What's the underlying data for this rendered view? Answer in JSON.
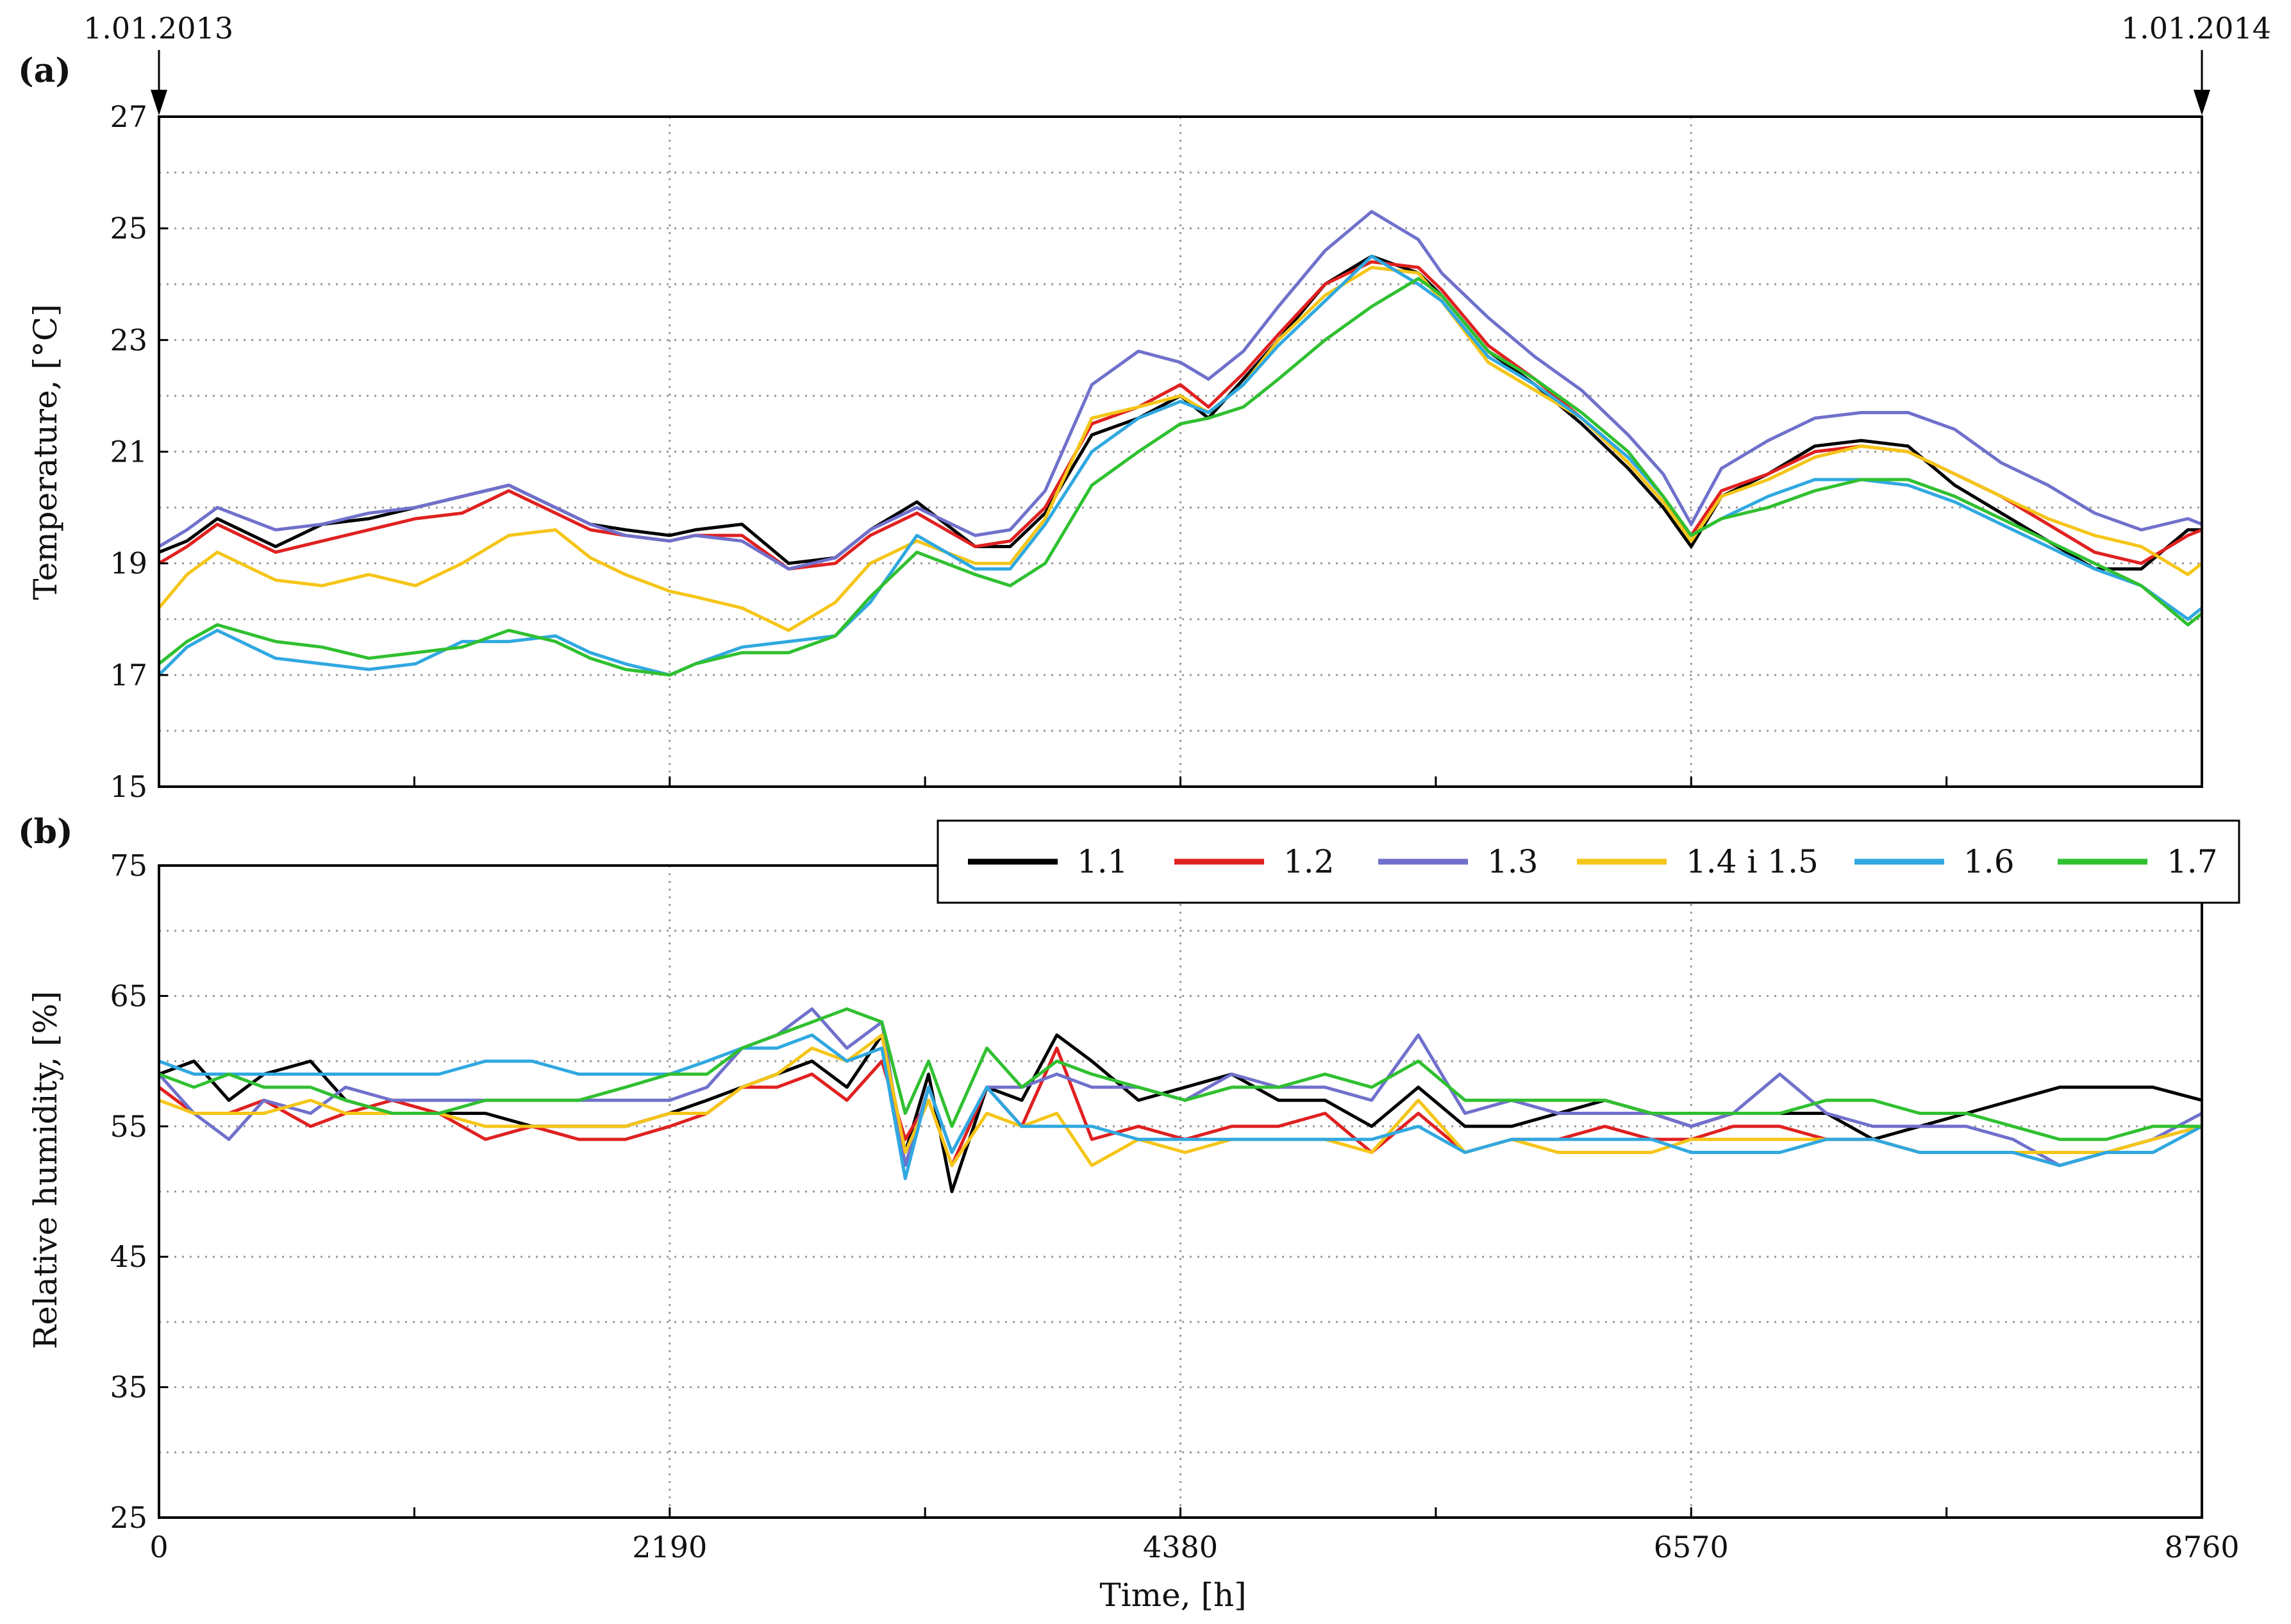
{
  "chart_data": [
    {
      "panel_label": "(a)",
      "type": "line",
      "ylabel": "Temperature, [°C]",
      "xlabel": "",
      "xlim": [
        0,
        8760
      ],
      "ylim": [
        15,
        27
      ],
      "yticks": [
        15,
        17,
        19,
        21,
        23,
        25,
        27
      ],
      "xticks": [
        0,
        2190,
        4380,
        6570,
        8760
      ],
      "xticks_labeled": false,
      "grid": "dotted",
      "date_annotations": [
        {
          "label": "1.01.2013",
          "x": 0
        },
        {
          "label": "1.01.2014",
          "x": 8760
        }
      ],
      "x": [
        0,
        120,
        250,
        500,
        700,
        900,
        1100,
        1300,
        1500,
        1700,
        1850,
        2000,
        2190,
        2300,
        2500,
        2700,
        2900,
        3050,
        3250,
        3500,
        3650,
        3800,
        4000,
        4200,
        4380,
        4500,
        4650,
        4800,
        5000,
        5200,
        5400,
        5500,
        5700,
        5900,
        6100,
        6300,
        6450,
        6570,
        6700,
        6900,
        7100,
        7300,
        7500,
        7700,
        7900,
        8100,
        8300,
        8500,
        8700,
        8760
      ],
      "series": [
        {
          "name": "1.1",
          "color": "#000000",
          "values": [
            19.2,
            19.4,
            19.8,
            19.3,
            19.7,
            19.8,
            20.0,
            20.2,
            20.4,
            20.0,
            19.7,
            19.6,
            19.5,
            19.6,
            19.7,
            19.0,
            19.1,
            19.6,
            20.1,
            19.3,
            19.3,
            19.9,
            21.3,
            21.6,
            22.0,
            21.6,
            22.3,
            23.0,
            24.0,
            24.5,
            24.2,
            23.8,
            22.8,
            22.2,
            21.5,
            20.7,
            20.0,
            19.3,
            20.2,
            20.6,
            21.1,
            21.2,
            21.1,
            20.4,
            19.9,
            19.4,
            18.9,
            18.9,
            19.6,
            19.6
          ]
        },
        {
          "name": "1.2",
          "color": "#e02020",
          "values": [
            19.0,
            19.3,
            19.7,
            19.2,
            19.4,
            19.6,
            19.8,
            19.9,
            20.3,
            19.9,
            19.6,
            19.5,
            19.4,
            19.5,
            19.5,
            18.9,
            19.0,
            19.5,
            19.9,
            19.3,
            19.4,
            20.0,
            21.5,
            21.8,
            22.2,
            21.8,
            22.4,
            23.1,
            24.0,
            24.4,
            24.3,
            23.9,
            22.9,
            22.3,
            21.6,
            20.8,
            20.1,
            19.5,
            20.3,
            20.6,
            21.0,
            21.1,
            21.0,
            20.6,
            20.2,
            19.7,
            19.2,
            19.0,
            19.5,
            19.6
          ]
        },
        {
          "name": "1.3",
          "color": "#7070cc",
          "values": [
            19.3,
            19.6,
            20.0,
            19.6,
            19.7,
            19.9,
            20.0,
            20.2,
            20.4,
            20.0,
            19.7,
            19.5,
            19.4,
            19.5,
            19.4,
            18.9,
            19.1,
            19.6,
            20.0,
            19.5,
            19.6,
            20.3,
            22.2,
            22.8,
            22.6,
            22.3,
            22.8,
            23.6,
            24.6,
            25.3,
            24.8,
            24.2,
            23.4,
            22.7,
            22.1,
            21.3,
            20.6,
            19.7,
            20.7,
            21.2,
            21.6,
            21.7,
            21.7,
            21.4,
            20.8,
            20.4,
            19.9,
            19.6,
            19.8,
            19.7
          ]
        },
        {
          "name": "1.4 i 1.5",
          "color": "#f5c518",
          "values": [
            18.2,
            18.8,
            19.2,
            18.7,
            18.6,
            18.8,
            18.6,
            19.0,
            19.5,
            19.6,
            19.1,
            18.8,
            18.5,
            18.4,
            18.2,
            17.8,
            18.3,
            19.0,
            19.4,
            19.0,
            19.0,
            19.8,
            21.6,
            21.8,
            22.0,
            21.7,
            22.2,
            23.0,
            23.8,
            24.3,
            24.2,
            23.7,
            22.6,
            22.1,
            21.6,
            20.8,
            20.1,
            19.4,
            20.2,
            20.5,
            20.9,
            21.1,
            21.0,
            20.6,
            20.2,
            19.8,
            19.5,
            19.3,
            18.8,
            19.0
          ]
        },
        {
          "name": "1.6",
          "color": "#30a8e0",
          "values": [
            17.0,
            17.5,
            17.8,
            17.3,
            17.2,
            17.1,
            17.2,
            17.6,
            17.6,
            17.7,
            17.4,
            17.2,
            17.0,
            17.2,
            17.5,
            17.6,
            17.7,
            18.3,
            19.5,
            18.9,
            18.9,
            19.7,
            21.0,
            21.6,
            21.9,
            21.7,
            22.2,
            22.9,
            23.7,
            24.5,
            24.0,
            23.7,
            22.7,
            22.2,
            21.6,
            20.9,
            20.2,
            19.5,
            19.8,
            20.2,
            20.5,
            20.5,
            20.4,
            20.1,
            19.7,
            19.3,
            18.9,
            18.6,
            18.0,
            18.2
          ]
        },
        {
          "name": "1.7",
          "color": "#30c030",
          "values": [
            17.2,
            17.6,
            17.9,
            17.6,
            17.5,
            17.3,
            17.4,
            17.5,
            17.8,
            17.6,
            17.3,
            17.1,
            17.0,
            17.2,
            17.4,
            17.4,
            17.7,
            18.4,
            19.2,
            18.8,
            18.6,
            19.0,
            20.4,
            21.0,
            21.5,
            21.6,
            21.8,
            22.3,
            23.0,
            23.6,
            24.1,
            23.8,
            22.8,
            22.3,
            21.7,
            21.0,
            20.2,
            19.5,
            19.8,
            20.0,
            20.3,
            20.5,
            20.5,
            20.2,
            19.8,
            19.4,
            19.0,
            18.6,
            17.9,
            18.1
          ]
        }
      ]
    },
    {
      "panel_label": "(b)",
      "type": "line",
      "ylabel": "Relative humidity, [%]",
      "xlabel": "Time, [h]",
      "xlim": [
        0,
        8760
      ],
      "ylim": [
        25,
        75
      ],
      "yticks": [
        25,
        35,
        45,
        55,
        65,
        75
      ],
      "xticks": [
        0,
        2190,
        4380,
        6570,
        8760
      ],
      "xtick_labels": [
        "0",
        "2190",
        "4380",
        "6570",
        "8760"
      ],
      "grid": "dotted",
      "legend_position": "top-right",
      "x": [
        0,
        150,
        300,
        450,
        650,
        800,
        1000,
        1200,
        1400,
        1600,
        1800,
        2000,
        2190,
        2350,
        2500,
        2650,
        2800,
        2950,
        3100,
        3200,
        3300,
        3400,
        3550,
        3700,
        3850,
        4000,
        4200,
        4400,
        4600,
        4800,
        5000,
        5200,
        5400,
        5600,
        5800,
        6000,
        6200,
        6400,
        6570,
        6750,
        6950,
        7150,
        7350,
        7550,
        7750,
        7950,
        8150,
        8350,
        8550,
        8760
      ],
      "series": [
        {
          "name": "1.1",
          "color": "#000000",
          "values": [
            59,
            60,
            57,
            59,
            60,
            57,
            56,
            56,
            56,
            55,
            55,
            55,
            56,
            57,
            58,
            59,
            60,
            58,
            62,
            53,
            59,
            50,
            58,
            57,
            62,
            60,
            57,
            58,
            59,
            57,
            57,
            55,
            58,
            55,
            55,
            56,
            57,
            56,
            55,
            56,
            56,
            56,
            54,
            55,
            56,
            57,
            58,
            58,
            58,
            57
          ]
        },
        {
          "name": "1.2",
          "color": "#e02020",
          "values": [
            58,
            56,
            56,
            57,
            55,
            56,
            57,
            56,
            54,
            55,
            54,
            54,
            55,
            56,
            58,
            58,
            59,
            57,
            60,
            54,
            57,
            52,
            58,
            55,
            61,
            54,
            55,
            54,
            55,
            55,
            56,
            53,
            56,
            53,
            54,
            54,
            55,
            54,
            54,
            55,
            55,
            54,
            54,
            53,
            53,
            53,
            52,
            53,
            54,
            55
          ]
        },
        {
          "name": "1.3",
          "color": "#7070cc",
          "values": [
            59,
            56,
            54,
            57,
            56,
            58,
            57,
            57,
            57,
            57,
            57,
            57,
            57,
            58,
            61,
            62,
            64,
            61,
            63,
            52,
            58,
            53,
            58,
            58,
            59,
            58,
            58,
            57,
            59,
            58,
            58,
            57,
            62,
            56,
            57,
            56,
            56,
            56,
            55,
            56,
            59,
            56,
            55,
            55,
            55,
            54,
            52,
            53,
            54,
            56
          ]
        },
        {
          "name": "1.4 i 1.5",
          "color": "#f5c518",
          "values": [
            57,
            56,
            56,
            56,
            57,
            56,
            56,
            56,
            55,
            55,
            55,
            55,
            56,
            56,
            58,
            59,
            61,
            60,
            62,
            53,
            57,
            52,
            56,
            55,
            56,
            52,
            54,
            53,
            54,
            54,
            54,
            53,
            57,
            53,
            54,
            53,
            53,
            53,
            54,
            54,
            54,
            54,
            54,
            53,
            53,
            53,
            53,
            53,
            54,
            55
          ]
        },
        {
          "name": "1.6",
          "color": "#30a8e0",
          "values": [
            60,
            59,
            59,
            59,
            59,
            59,
            59,
            59,
            60,
            60,
            59,
            59,
            59,
            60,
            61,
            61,
            62,
            60,
            61,
            51,
            58,
            53,
            58,
            55,
            55,
            55,
            54,
            54,
            54,
            54,
            54,
            54,
            55,
            53,
            54,
            54,
            54,
            54,
            53,
            53,
            53,
            54,
            54,
            53,
            53,
            53,
            52,
            53,
            53,
            55
          ]
        },
        {
          "name": "1.7",
          "color": "#30c030",
          "values": [
            59,
            58,
            59,
            58,
            58,
            57,
            56,
            56,
            57,
            57,
            57,
            58,
            59,
            59,
            61,
            62,
            63,
            64,
            63,
            56,
            60,
            55,
            61,
            58,
            60,
            59,
            58,
            57,
            58,
            58,
            59,
            58,
            60,
            57,
            57,
            57,
            57,
            56,
            56,
            56,
            56,
            57,
            57,
            56,
            56,
            55,
            54,
            54,
            55,
            55
          ]
        }
      ]
    }
  ]
}
